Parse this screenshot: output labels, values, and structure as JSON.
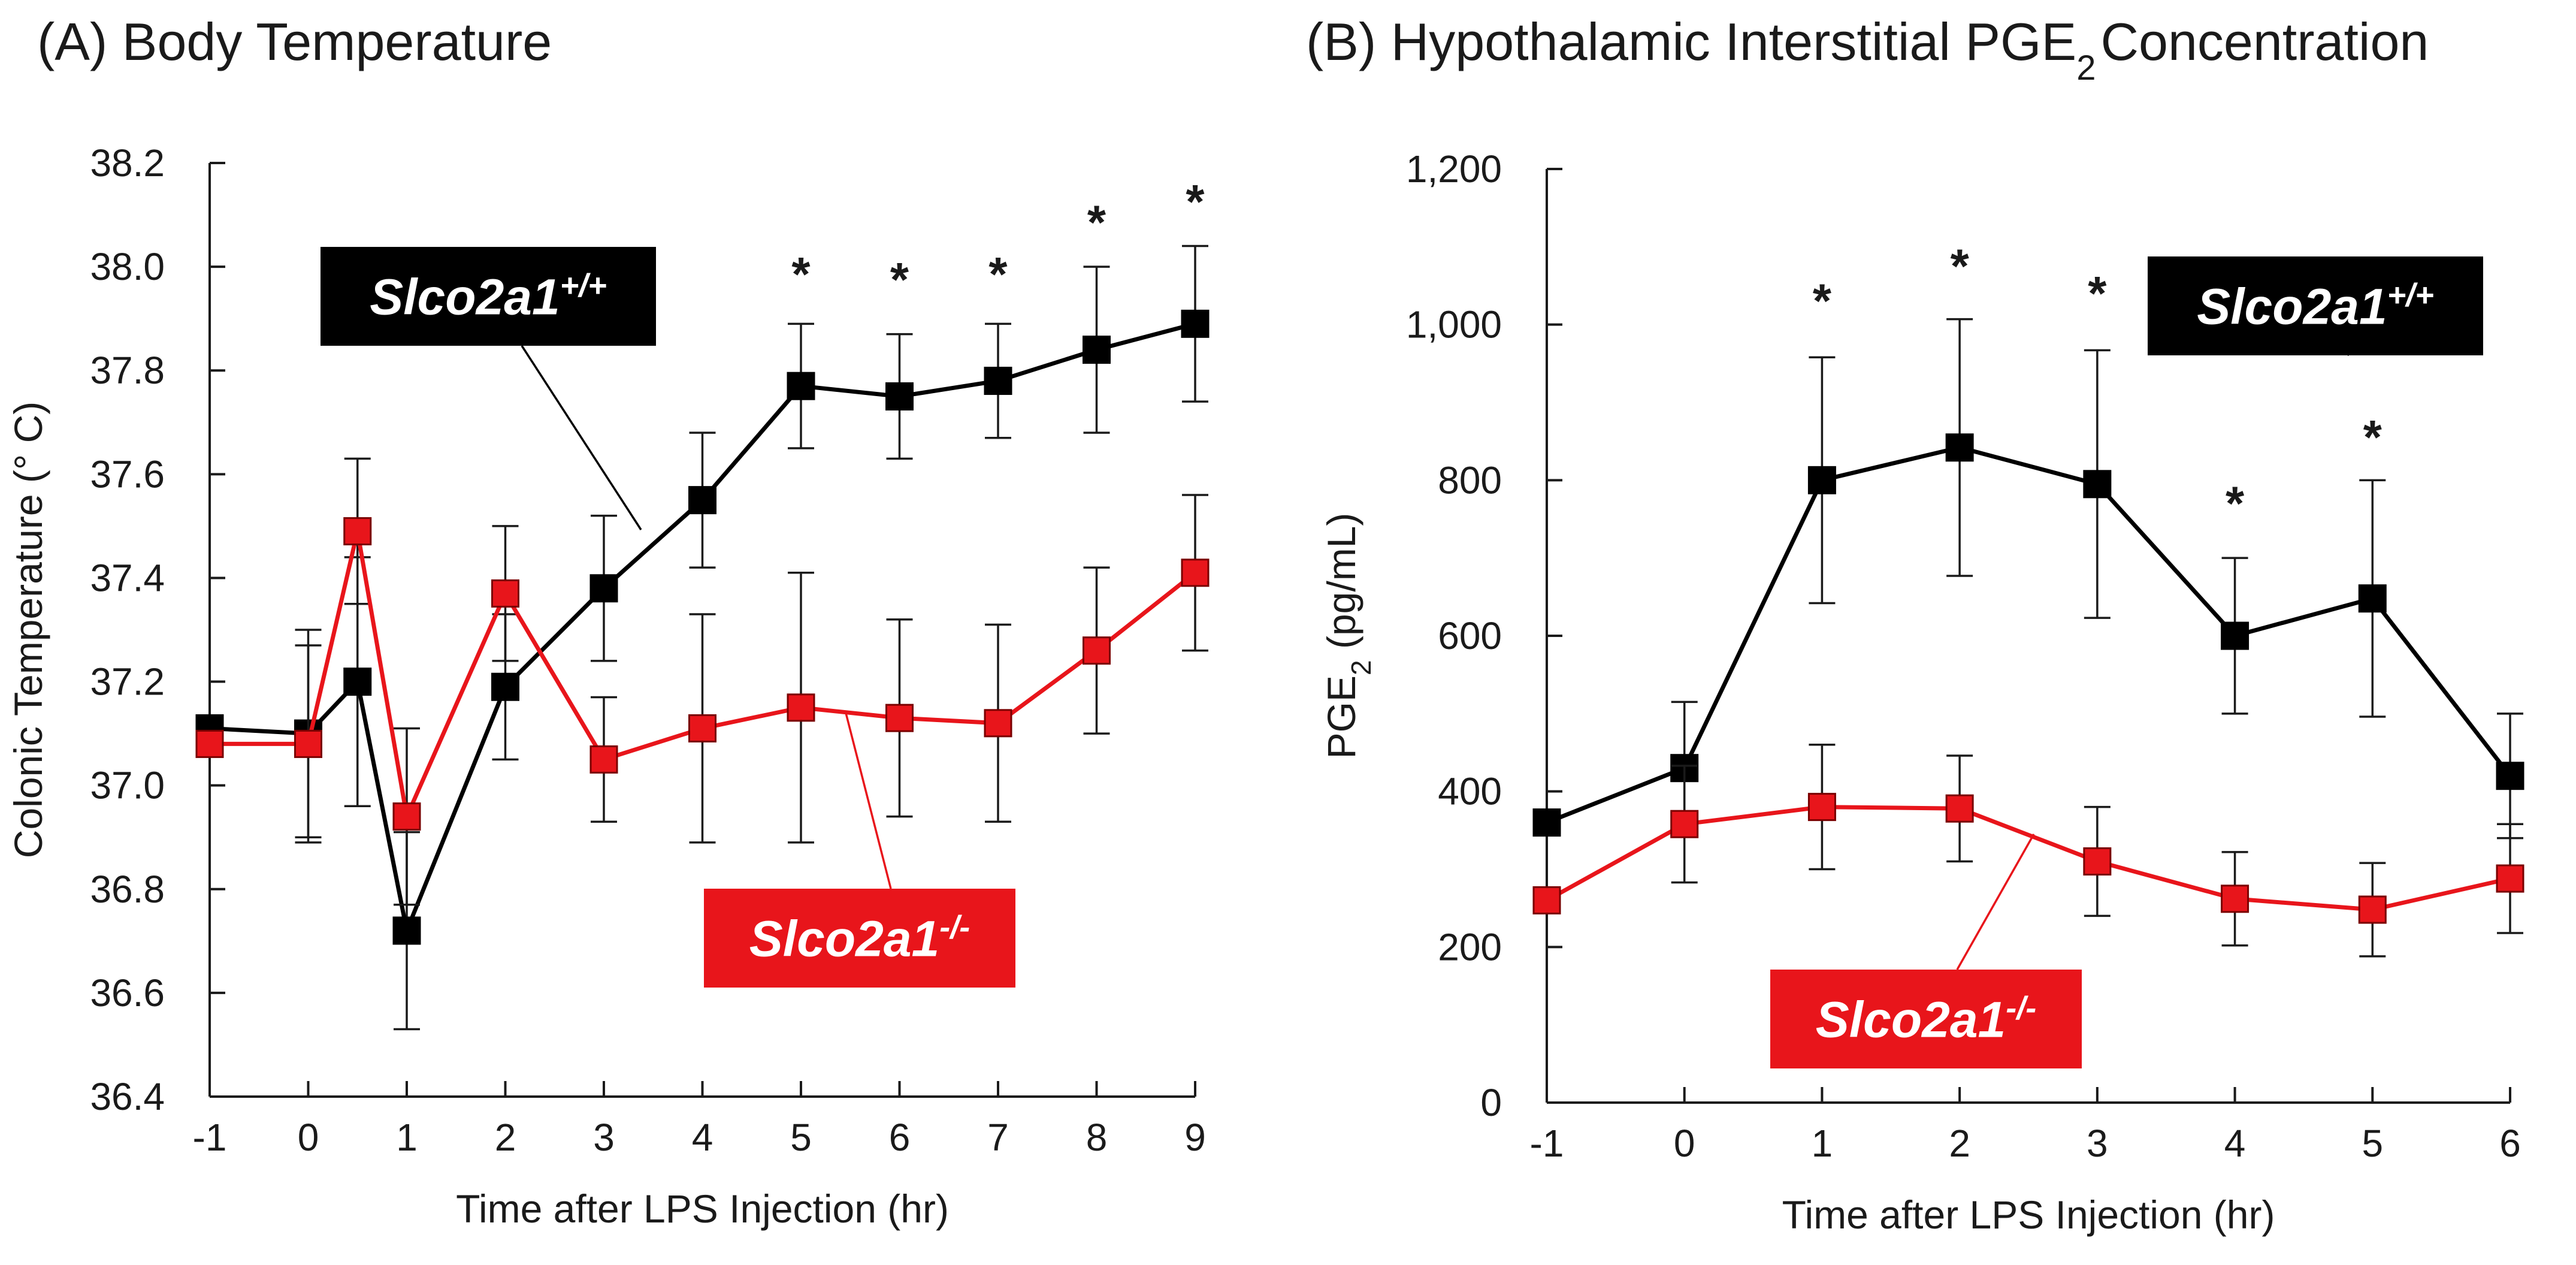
{
  "colors": {
    "wildtype": "#000000",
    "knockout": "#e8151b",
    "axis": "#1a1a1a"
  },
  "chart_data": [
    {
      "panel": "A",
      "type": "line",
      "title": "(A) Body Temperature",
      "xlabel": "Time after LPS Injection (hr)",
      "ylabel": "Colonic Temperature (° C)",
      "ylim": [
        36.4,
        38.2
      ],
      "yticks": [
        36.4,
        36.6,
        36.8,
        37.0,
        37.2,
        37.4,
        37.6,
        37.8,
        38.0,
        38.2
      ],
      "ytick_labels": [
        "36.4",
        "36.6",
        "36.8",
        "37.0",
        "37.2",
        "37.4",
        "37.6",
        "37.8",
        "38.0",
        "38.2"
      ],
      "xlim": [
        -1,
        9
      ],
      "xticks": [
        -1,
        0,
        1,
        2,
        3,
        4,
        5,
        6,
        7,
        8,
        9
      ],
      "xtick_labels": [
        "-1",
        "0",
        "1",
        "2",
        "3",
        "4",
        "5",
        "6",
        "7",
        "8",
        "9"
      ],
      "grid": false,
      "series": [
        {
          "name": "Slco2a1",
          "name_sup": "+/+",
          "key": "wildtype",
          "x": [
            -1,
            0,
            0.5,
            1,
            2,
            3,
            4,
            5,
            6,
            7,
            8,
            9
          ],
          "y": [
            37.11,
            37.1,
            37.2,
            36.72,
            37.19,
            37.38,
            37.55,
            37.77,
            37.75,
            37.78,
            37.84,
            37.89
          ],
          "err": [
            0,
            0.2,
            0.24,
            0.19,
            0.14,
            0.14,
            0.13,
            0.12,
            0.12,
            0.11,
            0.16,
            0.15
          ]
        },
        {
          "name": "Slco2a1",
          "name_sup": "-/-",
          "key": "knockout",
          "x": [
            -1,
            0,
            0.5,
            1,
            2,
            3,
            4,
            5,
            6,
            7,
            8,
            9
          ],
          "y": [
            37.08,
            37.08,
            37.49,
            36.94,
            37.37,
            37.05,
            37.11,
            37.15,
            37.13,
            37.12,
            37.26,
            37.41
          ],
          "err": [
            0,
            0.19,
            0.14,
            0.17,
            0.13,
            0.12,
            0.22,
            0.26,
            0.19,
            0.19,
            0.16,
            0.15
          ]
        }
      ],
      "annotations": [
        {
          "text": "*",
          "x": 5,
          "y": 38.0
        },
        {
          "text": "*",
          "x": 6,
          "y": 37.99
        },
        {
          "text": "*",
          "x": 7,
          "y": 38.0
        },
        {
          "text": "*",
          "x": 8,
          "y": 38.1
        },
        {
          "text": "*",
          "x": 9,
          "y": 38.14
        }
      ]
    },
    {
      "panel": "B",
      "type": "line",
      "title": "(B) Hypothalamic  Interstitial  PGE",
      "title_sub": "2",
      "title_end": "Concentration",
      "xlabel": "Time after LPS Injection (hr)",
      "ylabel": "PGE",
      "ylabel_sub": "2",
      "ylabel_end": " (pg/mL)",
      "ylim": [
        0,
        1200
      ],
      "yticks": [
        0,
        200,
        400,
        600,
        800,
        1000,
        1200
      ],
      "ytick_labels": [
        "0",
        "200",
        "400",
        "600",
        "800",
        "1,000",
        "1,200"
      ],
      "xlim": [
        -1,
        6
      ],
      "xticks": [
        -1,
        0,
        1,
        2,
        3,
        4,
        5,
        6
      ],
      "xtick_labels": [
        "-1",
        "0",
        "1",
        "2",
        "3",
        "4",
        "5",
        "6"
      ],
      "grid": false,
      "series": [
        {
          "name": "Slco2a1",
          "name_sup": "+/+",
          "key": "wildtype",
          "x": [
            -1,
            0,
            1,
            2,
            3,
            4,
            5,
            6
          ],
          "y": [
            360,
            430,
            800,
            842,
            795,
            600,
            648,
            420
          ],
          "err": [
            0,
            85,
            158,
            165,
            172,
            100,
            152,
            80
          ]
        },
        {
          "name": "Slco2a1",
          "name_sup": "-/-",
          "key": "knockout",
          "x": [
            -1,
            0,
            1,
            2,
            3,
            4,
            5,
            6
          ],
          "y": [
            260,
            358,
            380,
            378,
            310,
            262,
            248,
            288
          ],
          "err": [
            0,
            75,
            80,
            68,
            70,
            60,
            60,
            70
          ]
        }
      ],
      "annotations": [
        {
          "text": "*",
          "x": 1,
          "y": 1040
        },
        {
          "text": "*",
          "x": 2,
          "y": 1085
        },
        {
          "text": "*",
          "x": 3,
          "y": 1050
        },
        {
          "text": "*",
          "x": 4,
          "y": 780
        },
        {
          "text": "*",
          "x": 5,
          "y": 865
        }
      ]
    }
  ]
}
